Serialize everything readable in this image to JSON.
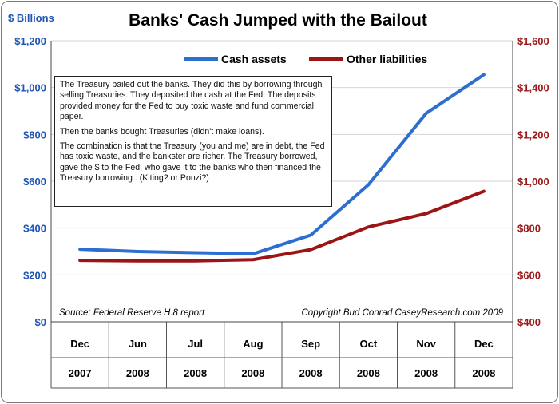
{
  "chart_data": {
    "type": "line",
    "title": "Banks' Cash Jumped with the Bailout",
    "ylabel": "$ Billions",
    "categories": [
      {
        "month": "Dec",
        "year": "2007"
      },
      {
        "month": "Jun",
        "year": "2008"
      },
      {
        "month": "Jul",
        "year": "2008"
      },
      {
        "month": "Aug",
        "year": "2008"
      },
      {
        "month": "Sep",
        "year": "2008"
      },
      {
        "month": "Oct",
        "year": "2008"
      },
      {
        "month": "Nov",
        "year": "2008"
      },
      {
        "month": "Dec",
        "year": "2008"
      }
    ],
    "y_left": {
      "ylim": [
        0,
        1200
      ],
      "ticks": [
        "$0",
        "$200",
        "$400",
        "$600",
        "$800",
        "$1,000",
        "$1,200"
      ],
      "tick_values": [
        0,
        200,
        400,
        600,
        800,
        1000,
        1200
      ],
      "color": "#1f56b4"
    },
    "y_right": {
      "ylim": [
        400,
        1600
      ],
      "ticks": [
        "$400",
        "$600",
        "$800",
        "$1,000",
        "$1,200",
        "$1,400",
        "$1,600"
      ],
      "tick_values": [
        400,
        600,
        800,
        1000,
        1200,
        1400,
        1600
      ],
      "color": "#9b1b1b"
    },
    "series": [
      {
        "name": "Cash assets",
        "axis": "left",
        "color": "#2c6fd1",
        "values": [
          310,
          300,
          295,
          290,
          370,
          585,
          890,
          1055
        ]
      },
      {
        "name": "Other liabilities",
        "axis": "right",
        "color": "#9b1515",
        "values": [
          662,
          660,
          660,
          665,
          708,
          805,
          862,
          957
        ]
      }
    ],
    "grid": true,
    "legend": "top"
  },
  "source": "Source: Federal Reserve H.8 report",
  "copyright": "Copyright Bud Conrad CaseyResearch.com  2009",
  "note_paragraphs": [
    "The Treasury bailed out the banks. They did this by borrowing through selling Treasuries. They deposited the cash  at the Fed. The deposits provided money for the Fed to buy toxic waste and fund commercial paper.",
    "Then the banks bought Treasuries  (didn't make loans).",
    "The combination is that  the Treasury (you and me) are in debt, the Fed has toxic waste, and the bankster are richer.  The Treasury borrowed, gave the $ to the Fed,  who gave it to the banks who then financed the Treasury borrowing .  (Kiting? or Ponzi?)"
  ]
}
